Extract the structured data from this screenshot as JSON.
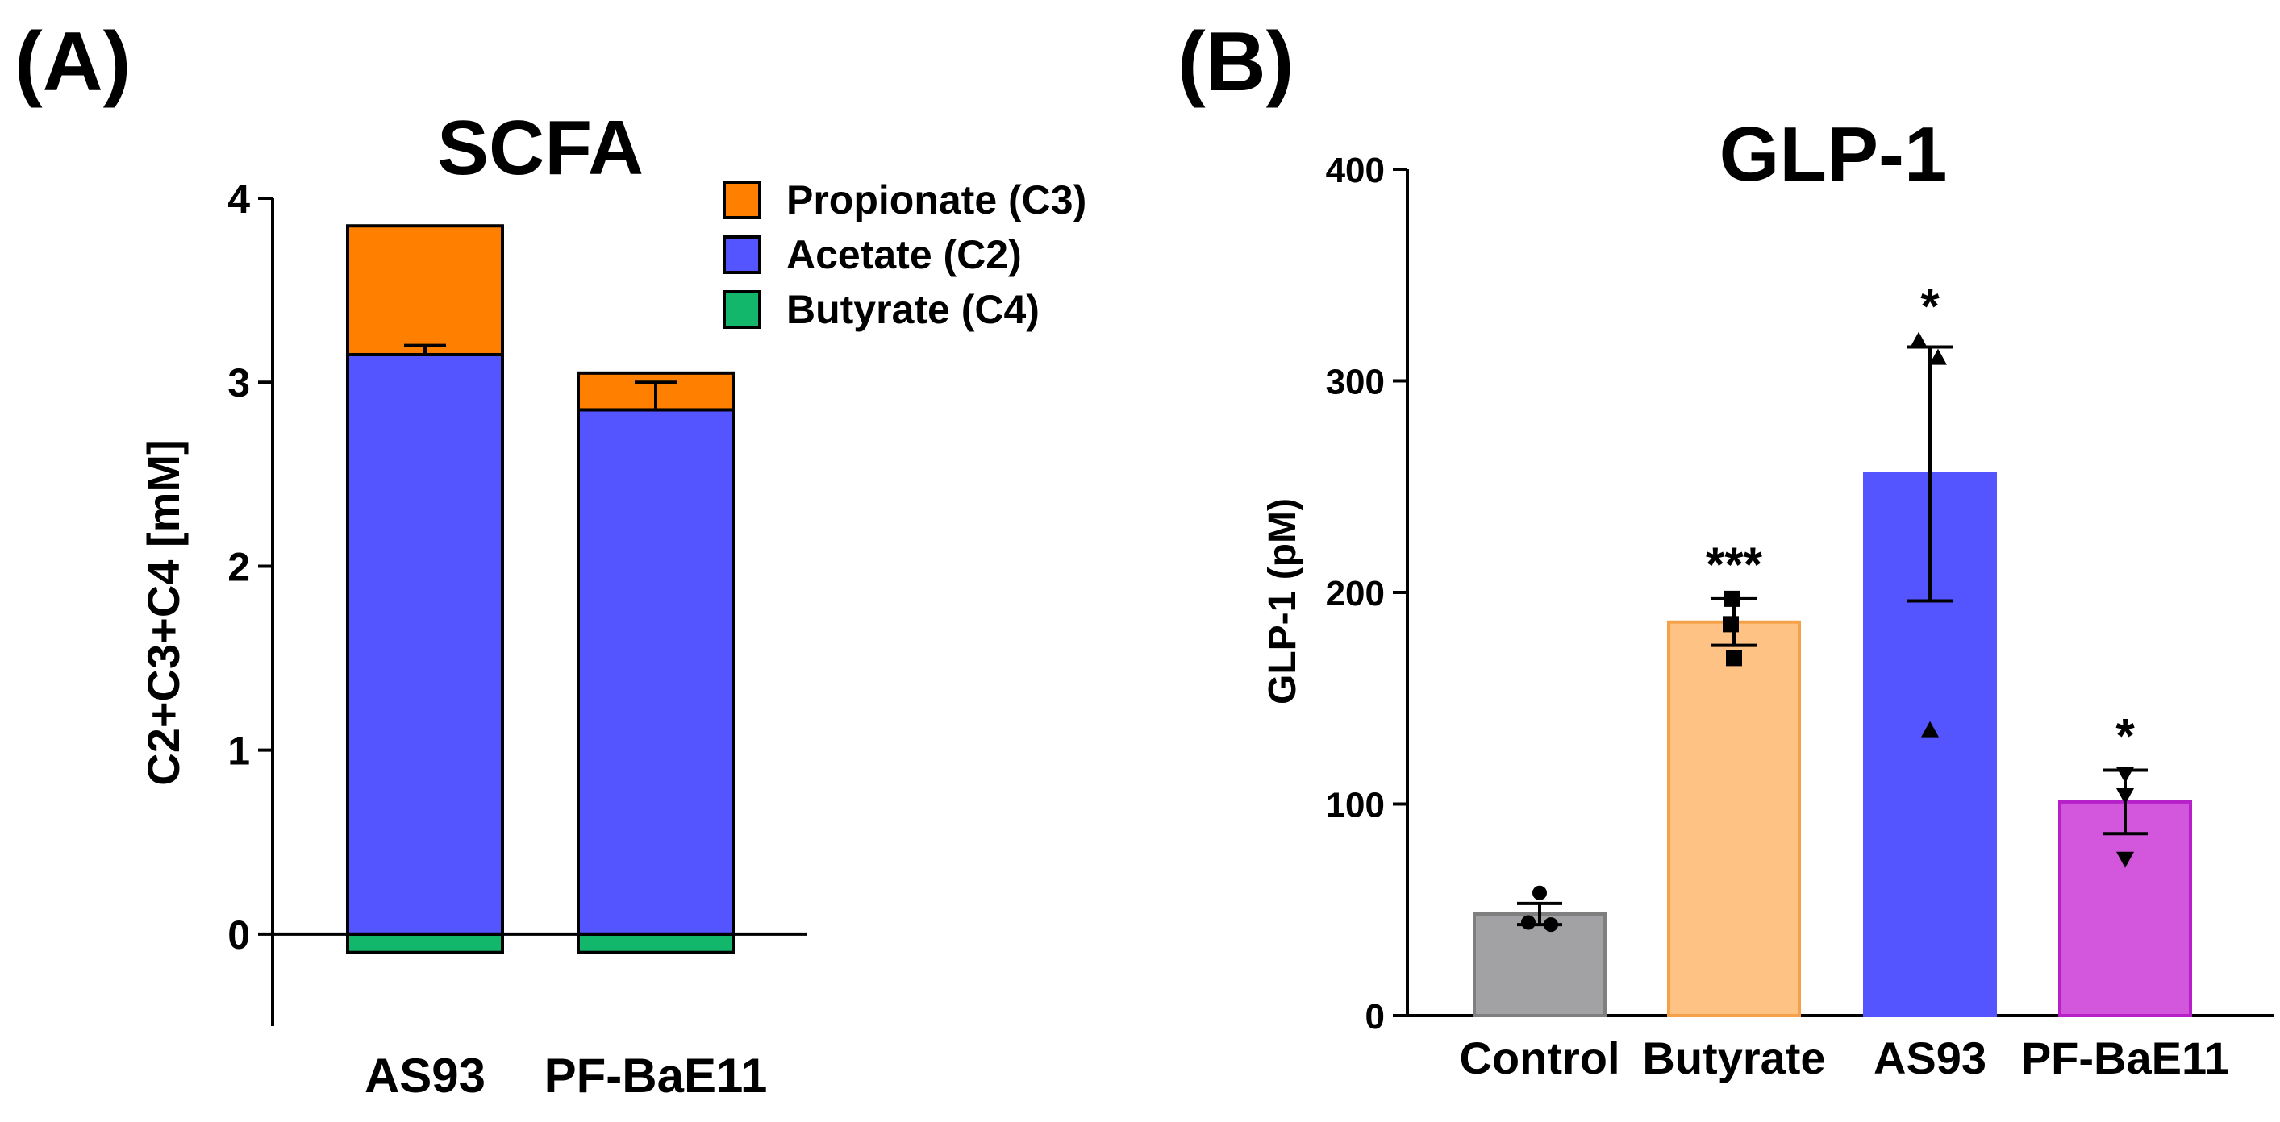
{
  "chart_data": [
    {
      "panel_label": "(A)",
      "type": "bar",
      "stacked": true,
      "title": "SCFA",
      "xlabel": "",
      "ylabel": "C2+C3+C4 [mM]",
      "ylim": [
        -0.5,
        4
      ],
      "yticks": [
        0,
        1,
        2,
        3,
        4
      ],
      "categories": [
        "AS93",
        "PF-BaE11"
      ],
      "series": [
        {
          "name": "Butyrate (C4)",
          "color": "#12b76b",
          "values": [
            -0.1,
            -0.1
          ]
        },
        {
          "name": "Acetate (C2)",
          "color": "#5555ff",
          "values": [
            3.15,
            2.85
          ]
        },
        {
          "name": "Propionate (C3)",
          "color": "#ff8000",
          "values": [
            0.7,
            0.2
          ]
        }
      ],
      "error_bars": [
        {
          "category": "AS93",
          "top": 3.2
        },
        {
          "category": "PF-BaE11",
          "top": 3.0
        }
      ],
      "legend": {
        "placement": "top-right",
        "order": [
          "Propionate (C3)",
          "Acetate (C2)",
          "Butyrate (C4)"
        ]
      },
      "grid": false
    },
    {
      "panel_label": "(B)",
      "type": "bar",
      "title": "GLP-1",
      "xlabel": "",
      "ylabel": "GLP-1 (pM)",
      "ylim": [
        0,
        400
      ],
      "yticks": [
        0,
        100,
        200,
        300,
        400
      ],
      "categories": [
        "Control",
        "Butyrate",
        "AS93",
        "PF-BaE11"
      ],
      "values": [
        48,
        186,
        256,
        101
      ],
      "errors": [
        5,
        11,
        60,
        15
      ],
      "colors": [
        "#a2a2a4",
        "#ffc285",
        "#5555ff",
        "#d257dd"
      ],
      "edge_colors": [
        "#7f7f7f",
        "#f5a14a",
        "#5555ff",
        "#b520c8"
      ],
      "points": [
        {
          "marker": "circle",
          "values": [
            58,
            44,
            43
          ]
        },
        {
          "marker": "square",
          "values": [
            197,
            185,
            169
          ]
        },
        {
          "marker": "triangle-up",
          "values": [
            319,
            311,
            135
          ]
        },
        {
          "marker": "triangle-down",
          "values": [
            114,
            104,
            74
          ]
        }
      ],
      "significance": [
        "",
        "***",
        "*",
        "*"
      ],
      "grid": false
    }
  ]
}
